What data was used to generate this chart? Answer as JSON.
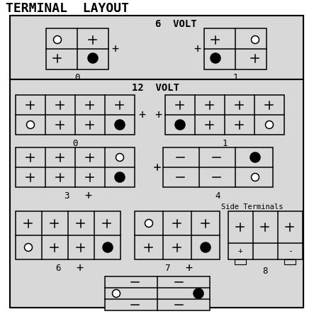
{
  "title": "TERMINAL  LAYOUT",
  "bg": "#d8d8d8",
  "lc": "#000000",
  "white": "#ffffff",
  "section_6v": "6  VOLT",
  "section_12v": "12  VOLT",
  "side_term": "Side Terminals"
}
